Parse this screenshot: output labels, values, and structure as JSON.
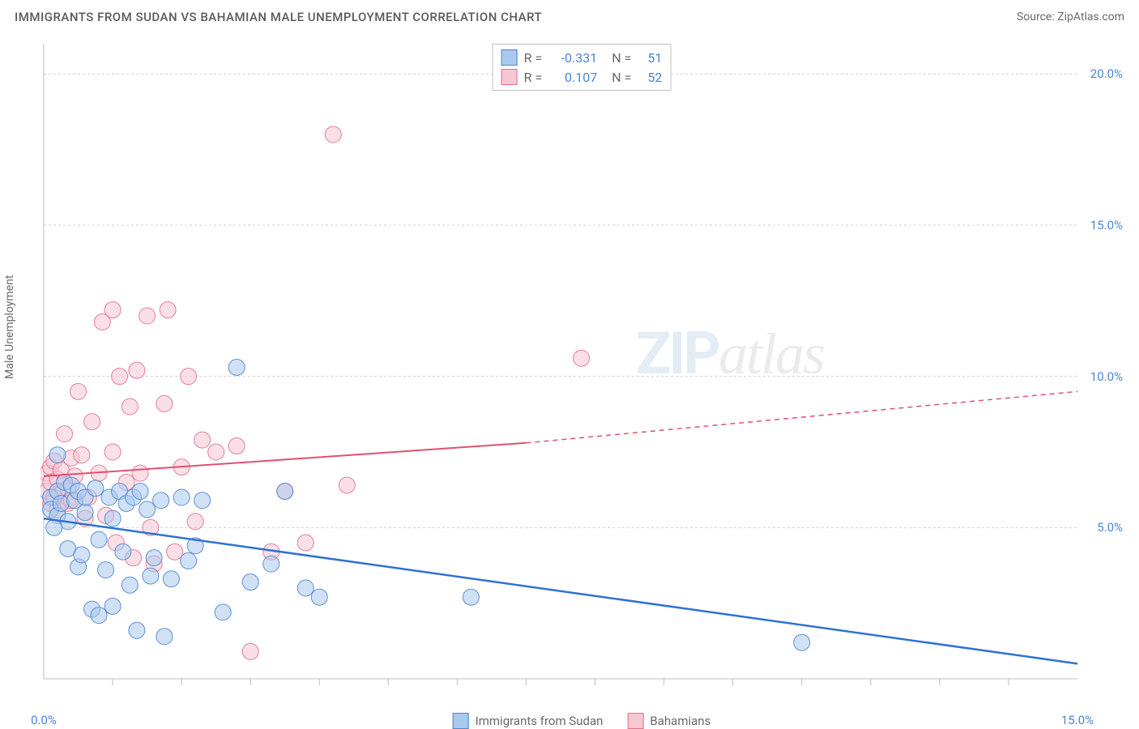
{
  "title": "IMMIGRANTS FROM SUDAN VS BAHAMIAN MALE UNEMPLOYMENT CORRELATION CHART",
  "source": "Source: ZipAtlas.com",
  "chart": {
    "type": "scatter",
    "y_label": "Male Unemployment",
    "xlim": [
      0,
      15
    ],
    "ylim": [
      0,
      21
    ],
    "x_ticks": [
      0,
      5,
      10,
      15
    ],
    "x_tick_labels": [
      "0.0%",
      "",
      "",
      "15.0%"
    ],
    "y_ticks": [
      5,
      10,
      15,
      20
    ],
    "y_tick_labels": [
      "5.0%",
      "10.0%",
      "15.0%",
      "20.0%"
    ],
    "x_minor_ticks": [
      1,
      2,
      3,
      4,
      5,
      6,
      7,
      8,
      9,
      10,
      11,
      12,
      13,
      14
    ],
    "colors": {
      "series_a_fill": "#a9c9ef",
      "series_a_stroke": "#4b86d1",
      "series_b_fill": "#f6c6d1",
      "series_b_stroke": "#e56f8e",
      "trend_a": "#2f72d1",
      "trend_b": "#e0506f",
      "grid": "#d0d0d0",
      "axis": "#bdbdbd",
      "tick_text": "#4b86d1",
      "text": "#6a6a6a"
    },
    "marker_radius": 10,
    "watermark_zip": "ZIP",
    "watermark_atlas": "atlas",
    "legend_top": [
      {
        "r_label": "R =",
        "r_value": "-0.331",
        "n_label": "N =",
        "n_value": "51"
      },
      {
        "r_label": "R =",
        "r_value": "0.107",
        "n_label": "N =",
        "n_value": "52"
      }
    ],
    "legend_bottom": [
      {
        "label": "Immigrants from Sudan"
      },
      {
        "label": "Bahamians"
      }
    ],
    "series_a": {
      "name": "Immigrants from Sudan",
      "trend": {
        "x1": 0,
        "y1": 5.3,
        "x2": 15,
        "y2": 0.5
      },
      "points": [
        [
          0.1,
          6.0
        ],
        [
          0.1,
          5.6
        ],
        [
          0.2,
          5.4
        ],
        [
          0.2,
          6.2
        ],
        [
          0.2,
          7.4
        ],
        [
          0.25,
          5.8
        ],
        [
          0.3,
          6.5
        ],
        [
          0.35,
          5.2
        ],
        [
          0.35,
          4.3
        ],
        [
          0.4,
          6.4
        ],
        [
          0.45,
          5.9
        ],
        [
          0.5,
          3.7
        ],
        [
          0.5,
          6.2
        ],
        [
          0.55,
          4.1
        ],
        [
          0.6,
          5.5
        ],
        [
          0.6,
          6.0
        ],
        [
          0.7,
          2.3
        ],
        [
          0.75,
          6.3
        ],
        [
          0.8,
          4.6
        ],
        [
          0.8,
          2.1
        ],
        [
          0.9,
          3.6
        ],
        [
          0.95,
          6.0
        ],
        [
          1.0,
          5.3
        ],
        [
          1.0,
          2.4
        ],
        [
          1.1,
          6.2
        ],
        [
          1.15,
          4.2
        ],
        [
          1.2,
          5.8
        ],
        [
          1.25,
          3.1
        ],
        [
          1.3,
          6.0
        ],
        [
          1.35,
          1.6
        ],
        [
          1.4,
          6.2
        ],
        [
          1.5,
          5.6
        ],
        [
          1.55,
          3.4
        ],
        [
          1.6,
          4.0
        ],
        [
          1.7,
          5.9
        ],
        [
          1.75,
          1.4
        ],
        [
          1.85,
          3.3
        ],
        [
          2.0,
          6.0
        ],
        [
          2.1,
          3.9
        ],
        [
          2.2,
          4.4
        ],
        [
          2.3,
          5.9
        ],
        [
          2.6,
          2.2
        ],
        [
          2.8,
          10.3
        ],
        [
          3.0,
          3.2
        ],
        [
          3.3,
          3.8
        ],
        [
          3.5,
          6.2
        ],
        [
          3.8,
          3.0
        ],
        [
          4.0,
          2.7
        ],
        [
          6.2,
          2.7
        ],
        [
          11.0,
          1.2
        ],
        [
          0.15,
          5.0
        ]
      ]
    },
    "series_b": {
      "name": "Bahamians",
      "trend_solid": {
        "x1": 0,
        "y1": 6.7,
        "x2": 7.0,
        "y2": 7.8
      },
      "trend_dashed": {
        "x1": 7.0,
        "y1": 7.8,
        "x2": 15,
        "y2": 9.5
      },
      "points": [
        [
          0.05,
          6.8
        ],
        [
          0.05,
          6.2
        ],
        [
          0.1,
          7.0
        ],
        [
          0.1,
          6.5
        ],
        [
          0.1,
          5.8
        ],
        [
          0.15,
          7.2
        ],
        [
          0.2,
          6.6
        ],
        [
          0.2,
          5.6
        ],
        [
          0.25,
          6.9
        ],
        [
          0.3,
          8.1
        ],
        [
          0.35,
          6.3
        ],
        [
          0.35,
          5.8
        ],
        [
          0.4,
          7.3
        ],
        [
          0.4,
          5.9
        ],
        [
          0.45,
          6.7
        ],
        [
          0.5,
          9.5
        ],
        [
          0.55,
          7.4
        ],
        [
          0.6,
          5.3
        ],
        [
          0.65,
          6.0
        ],
        [
          0.7,
          8.5
        ],
        [
          0.8,
          6.8
        ],
        [
          0.85,
          11.8
        ],
        [
          0.9,
          5.4
        ],
        [
          1.0,
          12.2
        ],
        [
          1.0,
          7.5
        ],
        [
          1.05,
          4.5
        ],
        [
          1.1,
          10.0
        ],
        [
          1.2,
          6.5
        ],
        [
          1.25,
          9.0
        ],
        [
          1.3,
          4.0
        ],
        [
          1.35,
          10.2
        ],
        [
          1.4,
          6.8
        ],
        [
          1.5,
          12.0
        ],
        [
          1.55,
          5.0
        ],
        [
          1.6,
          3.8
        ],
        [
          1.75,
          9.1
        ],
        [
          1.8,
          12.2
        ],
        [
          1.9,
          4.2
        ],
        [
          2.0,
          7.0
        ],
        [
          2.1,
          10.0
        ],
        [
          2.2,
          5.2
        ],
        [
          2.3,
          7.9
        ],
        [
          2.5,
          7.5
        ],
        [
          2.8,
          7.7
        ],
        [
          3.0,
          0.9
        ],
        [
          3.3,
          4.2
        ],
        [
          3.5,
          6.2
        ],
        [
          3.8,
          4.5
        ],
        [
          4.2,
          18.0
        ],
        [
          4.4,
          6.4
        ],
        [
          7.8,
          10.6
        ],
        [
          0.15,
          6.0
        ]
      ]
    }
  }
}
